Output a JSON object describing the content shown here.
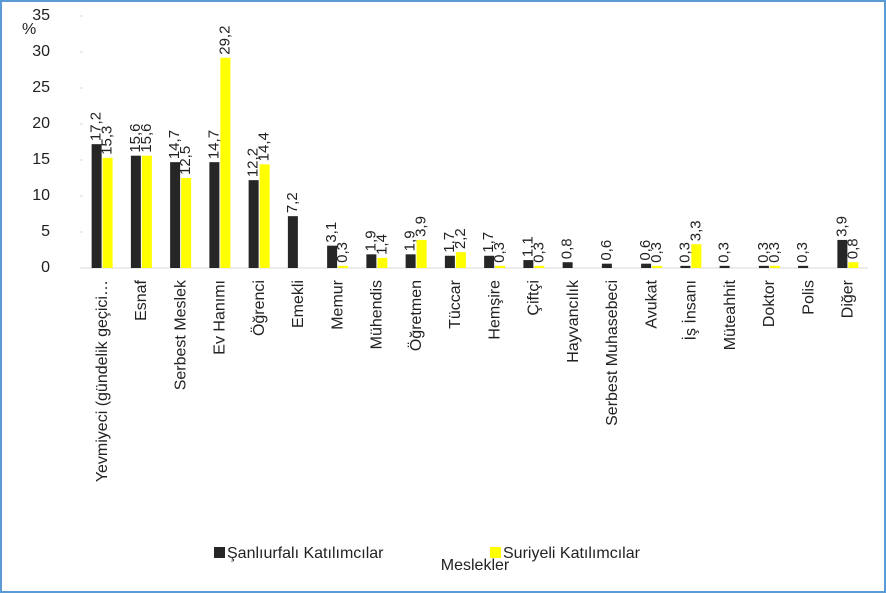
{
  "chart_data": {
    "type": "bar",
    "y_label": "%",
    "x_label": "Meslekler",
    "categories": [
      "Yevmiyeci (gündelik geçici…",
      "Esnaf",
      "Serbest Meslek",
      "Ev Hanımı",
      "Öğrenci",
      "Emekli",
      "Memur",
      "Mühendis",
      "Öğretmen",
      "Tüccar",
      "Hemşire",
      "Çiftçi",
      "Hayvancılık",
      "Serbest Muhasebeci",
      "Avukat",
      "İş İnsanı",
      "Müteahhit",
      "Doktor",
      "Polis",
      "Diğer"
    ],
    "series": [
      {
        "name": "Şanlıurfalı Katılımcılar",
        "color": "#262626",
        "values": [
          17.2,
          15.6,
          14.7,
          14.7,
          12.2,
          7.2,
          3.1,
          1.9,
          1.9,
          1.7,
          1.7,
          1.1,
          0.8,
          0.6,
          0.6,
          0.3,
          0.3,
          0.3,
          0.3,
          3.9
        ],
        "value_labels": [
          "17,2",
          "15,6",
          "14,7",
          "14,7",
          "12,2",
          "7,2",
          "3,1",
          "1,9",
          "1,9",
          "1,7",
          "1,7",
          "1,1",
          "0,8",
          "0,6",
          "0,6",
          "0,3",
          "0,3",
          "0,3",
          "0,3",
          "3,9"
        ]
      },
      {
        "name": "Suriyeli Katılımcılar",
        "color": "#ffff00",
        "values": [
          15.3,
          15.6,
          12.5,
          29.2,
          14.4,
          null,
          0.3,
          1.4,
          3.9,
          2.2,
          0.3,
          0.3,
          null,
          null,
          0.3,
          3.3,
          null,
          0.3,
          null,
          0.8
        ],
        "value_labels": [
          "15,3",
          "15,6",
          "12,5",
          "29,2",
          "14,4",
          null,
          "0,3",
          "1,4",
          "3,9",
          "2,2",
          "0,3",
          "0,3",
          null,
          null,
          "0,3",
          "3,3",
          null,
          "0,3",
          null,
          "0,8"
        ]
      }
    ],
    "ylim": [
      0,
      35
    ],
    "yticks": [
      0,
      5,
      10,
      15,
      20,
      25,
      30,
      35
    ],
    "legend": "bottom"
  }
}
